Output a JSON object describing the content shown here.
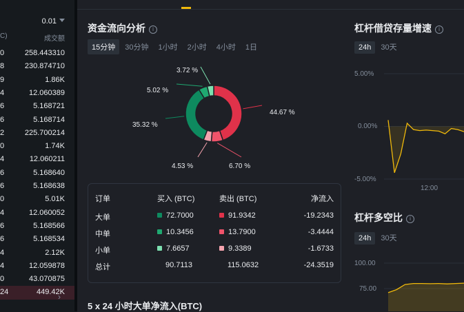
{
  "left_panel": {
    "precision": "0.01",
    "col_left": "C)",
    "col_right": "成交额",
    "rows": [
      {
        "a": "0",
        "b": "258.443310"
      },
      {
        "a": "8",
        "b": "230.874710"
      },
      {
        "a": "9",
        "b": "1.86K"
      },
      {
        "a": "4",
        "b": "12.060389"
      },
      {
        "a": "6",
        "b": "5.168721"
      },
      {
        "a": "6",
        "b": "5.168714"
      },
      {
        "a": "2",
        "b": "225.700214"
      },
      {
        "a": "0",
        "b": "1.74K"
      },
      {
        "a": "4",
        "b": "12.060211"
      },
      {
        "a": "6",
        "b": "5.168640"
      },
      {
        "a": "6",
        "b": "5.168638"
      },
      {
        "a": "0",
        "b": "5.01K"
      },
      {
        "a": "4",
        "b": "12.060052"
      },
      {
        "a": "6",
        "b": "5.168566"
      },
      {
        "a": "6",
        "b": "5.168534"
      },
      {
        "a": "4",
        "b": "2.12K"
      },
      {
        "a": "4",
        "b": "12.059878"
      },
      {
        "a": "0",
        "b": "43.070875"
      },
      {
        "a": "24",
        "b": "449.42K"
      }
    ]
  },
  "fund_flow": {
    "title": "资金流向分析",
    "tabs": [
      "15分钟",
      "30分钟",
      "1小时",
      "2小时",
      "4小时",
      "1日"
    ],
    "active_tab": 0,
    "donut": [
      {
        "label": "44.67 %",
        "value": 44.67,
        "color": "#e0324a"
      },
      {
        "label": "6.70 %",
        "value": 6.7,
        "color": "#f0536a"
      },
      {
        "label": "4.53 %",
        "value": 4.53,
        "color": "#f5a3ae"
      },
      {
        "label": "35.32 %",
        "value": 35.32,
        "color": "#0e8a5f"
      },
      {
        "label": "5.02 %",
        "value": 5.02,
        "color": "#1fa971"
      },
      {
        "label": "3.72 %",
        "value": 3.72,
        "color": "#7de0b0"
      }
    ],
    "table": {
      "headers": [
        "订单",
        "买入 (BTC)",
        "卖出 (BTC)",
        "净流入"
      ],
      "rows": [
        {
          "name": "大单",
          "buy": "72.7000",
          "sell": "91.9342",
          "net": "-19.2343",
          "buy_color": "#0e8a5f",
          "sell_color": "#e0324a"
        },
        {
          "name": "中单",
          "buy": "10.3456",
          "sell": "13.7900",
          "net": "-3.4444",
          "buy_color": "#1fa971",
          "sell_color": "#f0536a"
        },
        {
          "name": "小单",
          "buy": "7.6657",
          "sell": "9.3389",
          "net": "-1.6733",
          "buy_color": "#7de0b0",
          "sell_color": "#f5a3ae"
        }
      ],
      "total": {
        "name": "总计",
        "buy": "90.7113",
        "sell": "115.0632",
        "net": "-24.3519"
      }
    },
    "bottom_title": "5 x 24 小时大单净流入(BTC)"
  },
  "margin_growth": {
    "title": "杠杆借贷存量增速",
    "tabs": [
      "24h",
      "30天"
    ],
    "active_tab": 0,
    "y_ticks": [
      "5.00%",
      "0.00%",
      "-5.00%"
    ],
    "x_tick": "12:00",
    "chart_data": {
      "type": "line",
      "ylim": [
        -5,
        5
      ],
      "x": [
        0,
        1,
        2,
        3,
        4,
        5,
        6,
        7,
        8,
        9,
        10,
        11,
        12
      ],
      "values": [
        0.6,
        -4.4,
        -2.6,
        0.3,
        -0.3,
        -0.4,
        -0.35,
        -0.4,
        -0.45,
        -0.7,
        -0.2,
        -0.3,
        -0.5
      ],
      "line_color": "#f0b90b"
    }
  },
  "long_short": {
    "title": "杠杆多空比",
    "tabs": [
      "24h",
      "30天"
    ],
    "active_tab": 0,
    "y_ticks": [
      "100.00",
      "75.00"
    ],
    "chart_data": {
      "type": "area",
      "ylim": [
        70,
        100
      ],
      "x": [
        0,
        1,
        2,
        3,
        4,
        5,
        6,
        7,
        8,
        9
      ],
      "values": [
        71,
        74,
        79,
        80,
        80,
        79.8,
        80,
        79.6,
        80,
        80.3
      ],
      "line_color": "#f0b90b"
    }
  }
}
